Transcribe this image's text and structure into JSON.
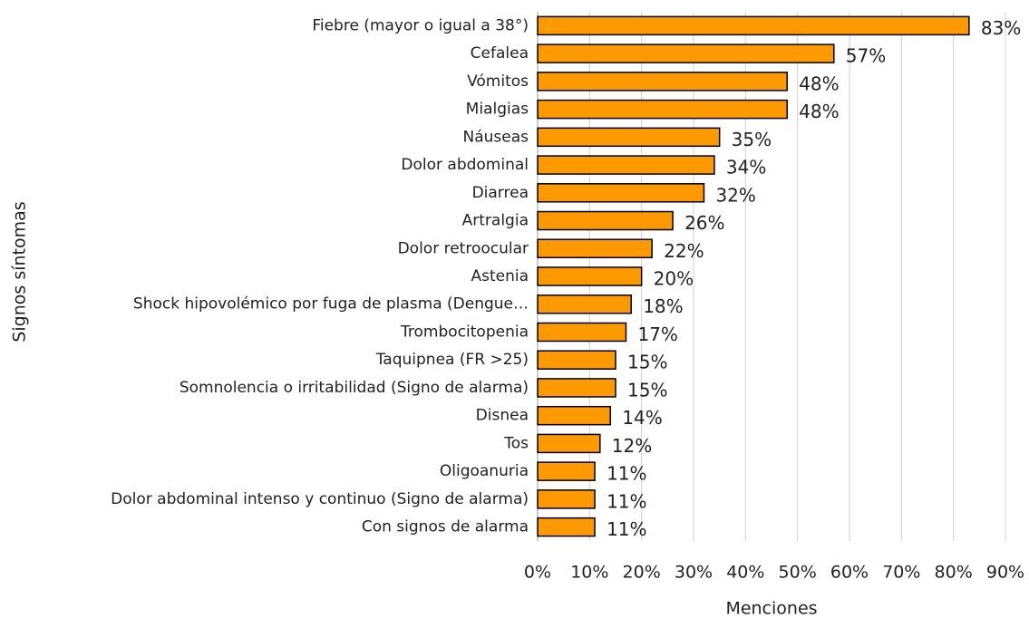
{
  "chart_data": {
    "type": "bar",
    "orientation": "horizontal",
    "x_axis_label": "Menciones",
    "y_axis_label": "Signos  síntomas",
    "categories": [
      "Fiebre (mayor o igual a 38°)",
      "Cefalea",
      "Vómitos",
      "Mialgias",
      "Náuseas",
      "Dolor abdominal",
      "Diarrea",
      "Artralgia",
      "Dolor retroocular",
      "Astenia",
      "Shock hipovolémico por fuga de plasma (Dengue…",
      "Trombocitopenia",
      "Taquipnea (FR >25)",
      "Somnolencia o irritabilidad (Signo de alarma)",
      "Disnea",
      "Tos",
      "Oligoanuria",
      "Dolor abdominal intenso y continuo (Signo de alarma)",
      "Con signos de alarma"
    ],
    "values": [
      83,
      57,
      48,
      48,
      35,
      34,
      32,
      26,
      22,
      20,
      18,
      17,
      15,
      15,
      14,
      12,
      11,
      11,
      11
    ],
    "value_labels": [
      "83%",
      "57%",
      "48%",
      "48%",
      "35%",
      "34%",
      "32%",
      "26%",
      "22%",
      "20%",
      "18%",
      "17%",
      "15%",
      "15%",
      "14%",
      "12%",
      "11%",
      "11%",
      "11%"
    ],
    "color": "#ff9900",
    "xlim": [
      0,
      90
    ],
    "xticks": [
      {
        "value": 0,
        "label": "0%"
      },
      {
        "value": 10,
        "label": "10%"
      },
      {
        "value": 20,
        "label": "20%"
      },
      {
        "value": 30,
        "label": "30%"
      },
      {
        "value": 40,
        "label": "40%"
      },
      {
        "value": 50,
        "label": "50%"
      },
      {
        "value": 60,
        "label": "60%"
      },
      {
        "value": 70,
        "label": "70%"
      },
      {
        "value": 80,
        "label": "80%"
      },
      {
        "value": 90,
        "label": "90%"
      }
    ],
    "grid": true
  }
}
